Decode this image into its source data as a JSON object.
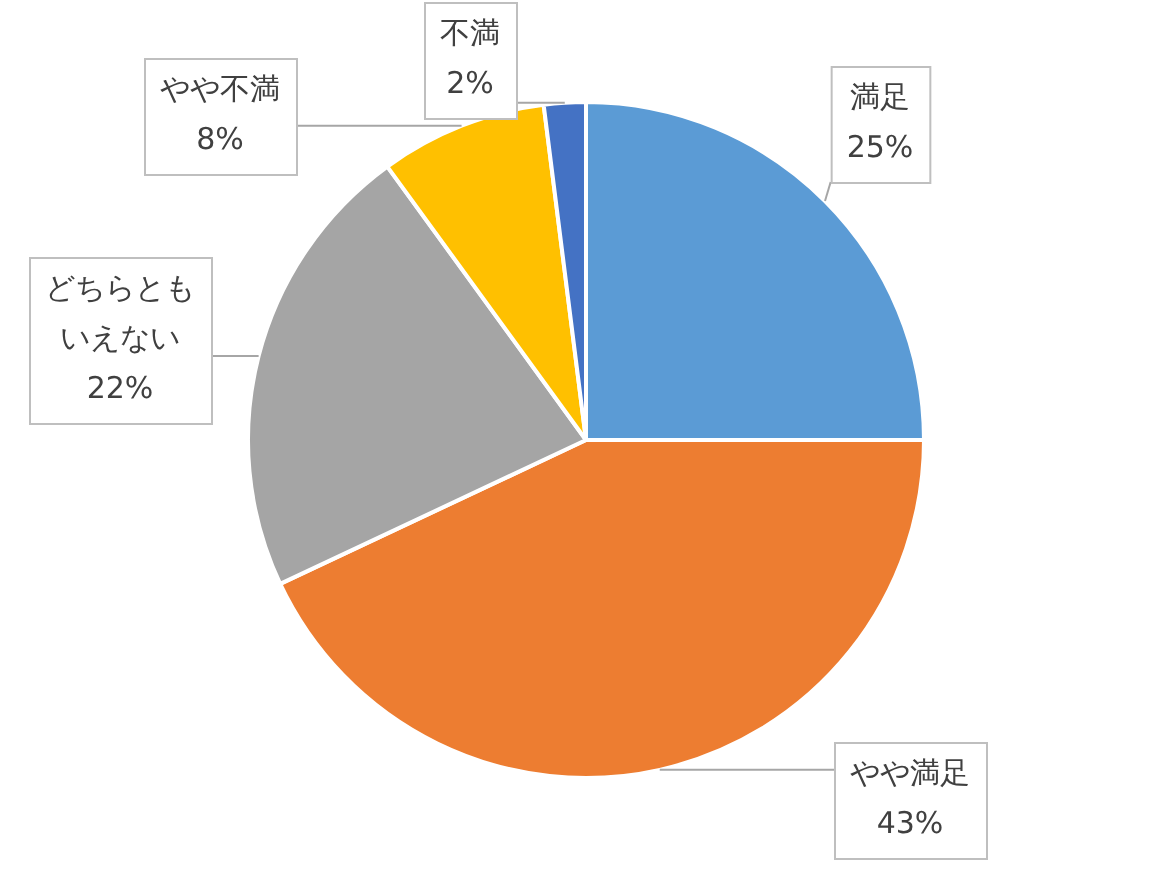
{
  "chart_data": {
    "type": "pie",
    "categories": [
      "満足",
      "やや満足",
      "どちらともいえない",
      "やや不満",
      "不満"
    ],
    "values": [
      25,
      43,
      22,
      8,
      2
    ],
    "colors": [
      "#5b9bd5",
      "#ed7d31",
      "#a5a5a5",
      "#ffc000",
      "#4472c4"
    ],
    "value_labels": [
      "25%",
      "43%",
      "22%",
      "8%",
      "2%"
    ],
    "legend": false
  }
}
